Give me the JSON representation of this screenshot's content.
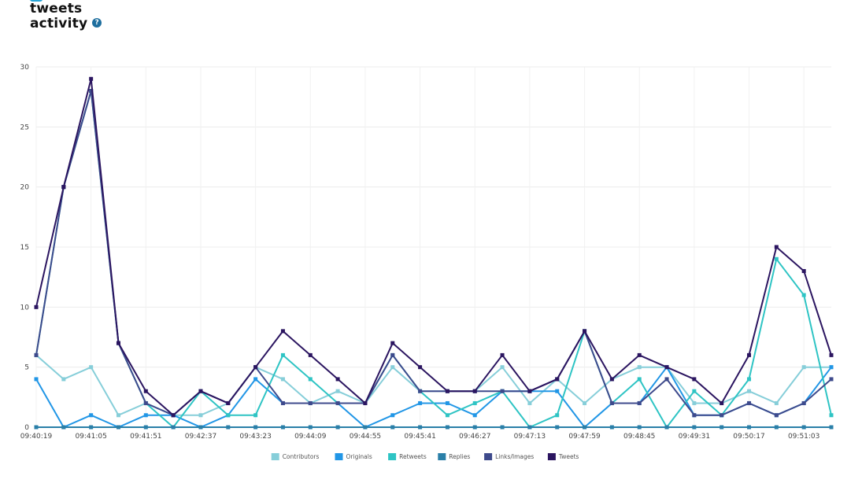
{
  "header": {
    "title_line1": "tweets",
    "title_line2": "activity",
    "help_icon": "question-icon",
    "help_glyph": "?"
  },
  "chart_data": {
    "type": "line",
    "x": [
      "09:40:19",
      "",
      "09:41:05",
      "",
      "09:41:51",
      "",
      "09:42:37",
      "",
      "09:43:23",
      "",
      "09:44:09",
      "",
      "09:44:55",
      "",
      "09:45:41",
      "",
      "09:46:27",
      "",
      "09:47:13",
      "",
      "09:47:59",
      "",
      "09:48:45",
      "",
      "09:49:31",
      "",
      "09:50:17",
      "",
      "09:51:03",
      ""
    ],
    "x_tick_labels": [
      "09:40:19",
      "09:41:05",
      "09:41:51",
      "09:42:37",
      "09:43:23",
      "09:44:09",
      "09:44:55",
      "09:45:41",
      "09:46:27",
      "09:47:13",
      "09:47:59",
      "09:48:45",
      "09:49:31",
      "09:50:17",
      "09:51:03"
    ],
    "ylim": [
      0,
      30
    ],
    "y_ticks": [
      0,
      5,
      10,
      15,
      20,
      25,
      30
    ],
    "grid": true,
    "legend_position": "bottom",
    "series": [
      {
        "name": "Contributors",
        "color": "#86ced9",
        "values": [
          6,
          4,
          5,
          1,
          2,
          1,
          1,
          2,
          5,
          4,
          2,
          3,
          2,
          5,
          3,
          3,
          3,
          5,
          2,
          4,
          2,
          4,
          5,
          5,
          2,
          2,
          3,
          2,
          5,
          5
        ]
      },
      {
        "name": "Originals",
        "color": "#2196e6",
        "values": [
          4,
          0,
          1,
          0,
          1,
          1,
          0,
          1,
          4,
          2,
          2,
          2,
          0,
          1,
          2,
          2,
          1,
          3,
          3,
          3,
          0,
          2,
          2,
          5,
          1,
          1,
          2,
          1,
          2,
          5
        ]
      },
      {
        "name": "Retweets",
        "color": "#2ec4c4",
        "values": [
          6,
          20,
          28,
          7,
          2,
          0,
          3,
          1,
          1,
          6,
          4,
          2,
          2,
          6,
          3,
          1,
          2,
          3,
          0,
          1,
          8,
          2,
          4,
          0,
          3,
          1,
          4,
          14,
          11,
          1
        ]
      },
      {
        "name": "Replies",
        "color": "#2a7fa8",
        "values": [
          0,
          0,
          0,
          0,
          0,
          0,
          0,
          0,
          0,
          0,
          0,
          0,
          0,
          0,
          0,
          0,
          0,
          0,
          0,
          0,
          0,
          0,
          0,
          0,
          0,
          0,
          0,
          0,
          0,
          0
        ]
      },
      {
        "name": "Links/Images",
        "color": "#3e4a8c",
        "values": [
          6,
          20,
          28,
          7,
          2,
          1,
          3,
          2,
          5,
          2,
          2,
          2,
          2,
          6,
          3,
          3,
          3,
          3,
          3,
          4,
          8,
          2,
          2,
          4,
          1,
          1,
          2,
          1,
          2,
          4
        ]
      },
      {
        "name": "Tweets",
        "color": "#2b1560",
        "values": [
          10,
          20,
          29,
          7,
          3,
          1,
          3,
          2,
          5,
          8,
          6,
          4,
          2,
          7,
          5,
          3,
          3,
          6,
          3,
          4,
          8,
          4,
          6,
          5,
          4,
          2,
          6,
          15,
          13,
          6
        ]
      }
    ]
  }
}
